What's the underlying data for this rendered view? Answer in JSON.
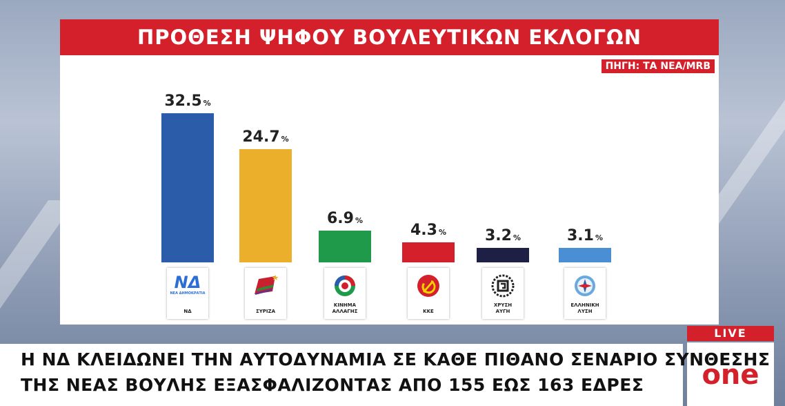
{
  "header": {
    "title": "ΠΡΟΘΕΣΗ ΨΗΦΟΥ ΒΟΥΛΕΥΤΙΚΩΝ ΕΚΛΟΓΩΝ",
    "source": "ΠΗΓΗ: ΤΑ ΝΕΑ/MRB"
  },
  "chart_data": {
    "type": "bar",
    "title": "ΠΡΟΘΕΣΗ ΨΗΦΟΥ ΒΟΥΛΕΥΤΙΚΩΝ ΕΚΛΟΓΩΝ",
    "categories": [
      "ΝΔ",
      "ΣΥΡΙΖΑ",
      "ΚΙΝΗΜΑ ΑΛΛΑΓΗΣ",
      "ΚΚΕ",
      "ΧΡΥΣΗ ΑΥΓΗ",
      "ΕΛΛΗΝΙΚΗ ΛΥΣΗ"
    ],
    "values": [
      32.5,
      24.7,
      6.9,
      4.3,
      3.2,
      3.1
    ],
    "value_labels": [
      "32.5",
      "24.7",
      "6.9",
      "4.3",
      "3.2",
      "3.1"
    ],
    "unit": "%",
    "colors": [
      "#2b5caa",
      "#ecaf2b",
      "#1f9a4a",
      "#d4202a",
      "#1e1f45",
      "#4a8fd3"
    ],
    "logo_labels": [
      [
        "ΝΔ"
      ],
      [
        "ΣΥΡΙΖΑ"
      ],
      [
        "ΚΙΝΗΜΑ",
        "ΑΛΛΑΓΗΣ"
      ],
      [
        "ΚΚΕ"
      ],
      [
        "ΧΡΥΣΗ",
        "ΑΥΓΗ"
      ],
      [
        "ΕΛΛΗΝΙΚΗ",
        "ΛΥΣΗ"
      ]
    ],
    "logo_icons": [
      "nd-logo-icon",
      "syriza-flag-icon",
      "kinal-logo-icon",
      "hammer-sickle-icon",
      "meander-wreath-icon",
      "greek-solution-logo-icon"
    ],
    "nd_logo_text": "ΝΔ",
    "nd_logo_subtext": "ΝΕΑ ΔΗΜΟΚΡΑΤΙΑ",
    "ylim": [
      0,
      35
    ]
  },
  "ticker": {
    "line1": "Η  ΝΔ ΚΛΕΙΔΩΝΕΙ ΤΗΝ ΑΥΤΟΔΥΝΑΜΙΑ ΣΕ ΚΑΘΕ ΠΙΘΑΝΟ ΣΕΝΑΡΙΟ ΣΥΝΘΕΣΗΣ",
    "line2": "ΤΗΣ ΝΕΑΣ ΒΟΥΛΗΣ ΕΞΑΣΦΑΛΙΖΟΝΤΑΣ ΑΠΟ 155 ΕΩΣ 163 ΕΔΡΕΣ"
  },
  "channel": {
    "live_label": "LIVE",
    "logo_text": "one",
    "brand_color": "#d4202a"
  }
}
